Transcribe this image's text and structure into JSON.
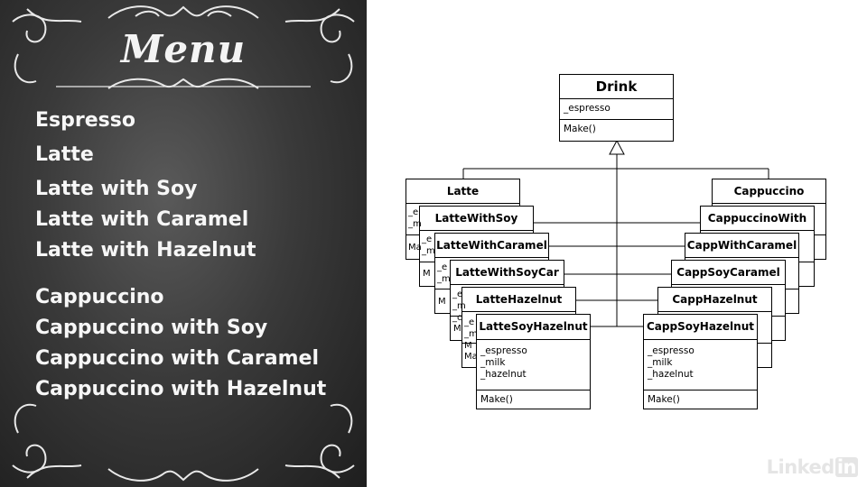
{
  "menu": {
    "title": "Menu",
    "items": [
      "Espresso",
      "Latte",
      "Latte with Soy",
      "Latte with Caramel",
      "Latte with Hazelnut",
      "Cappuccino",
      "Cappuccino with Soy",
      "Cappuccino with Caramel",
      "Cappuccino with Hazelnut"
    ]
  },
  "uml": {
    "base": {
      "name": "Drink",
      "attributes": [
        "_espresso"
      ],
      "methods": [
        "Make()"
      ]
    },
    "latte_stack": [
      "Latte",
      "LatteWithSoy",
      "LatteWithCaramel",
      "LatteWithSoyCar",
      "LatteHazelnut",
      "LatteSoyHazelnut"
    ],
    "cappuccino_stack": [
      "Cappuccino",
      "CappuccinoWith",
      "CappWithCaramel",
      "CappSoyCaramel",
      "CappHazelnut",
      "CappSoyHazelnut"
    ],
    "peek_fragments": {
      "attr_a": "_e",
      "attr_b": "_m",
      "method_a": "Ma",
      "method_b": "M",
      "attr_c": "_c",
      "method_c": "Ma"
    },
    "front_attributes": [
      "_espresso",
      "_milk",
      "_hazelnut"
    ],
    "front_methods": [
      "Make()"
    ]
  },
  "branding": {
    "logo_text": "Linked",
    "logo_badge": "in"
  }
}
